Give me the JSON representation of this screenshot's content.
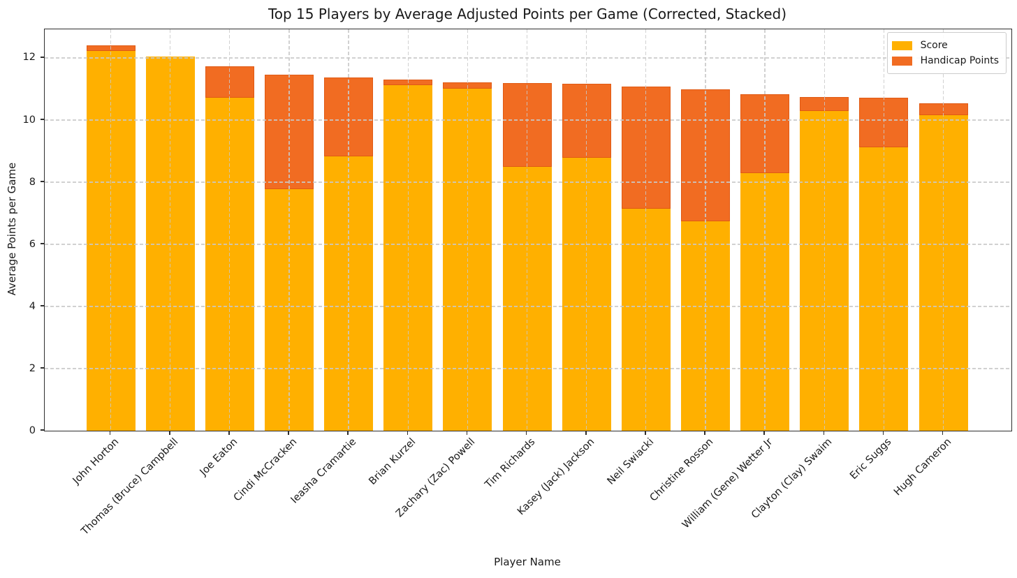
{
  "chart_data": {
    "type": "bar",
    "stacked": true,
    "title": "Top 15 Players by Average Adjusted Points per Game (Corrected, Stacked)",
    "xlabel": "Player Name",
    "ylabel": "Average Points per Game",
    "categories": [
      "John Horton",
      "Thomas (Bruce) Campbell",
      "Joe Eaton",
      "Cindi McCracken",
      "Ieasha Cramartie",
      "Brian Kurzel",
      "Zachary (Zac) Powell",
      "Tim Richards",
      "Kasey (Jack) Jackson",
      "Neil Swiacki",
      "Christine Rosson",
      "William (Gene) Wetter Jr",
      "Clayton (Clay) Swaim",
      "Eric Suggs",
      "Hugh Cameron"
    ],
    "series": [
      {
        "name": "Score",
        "color": "#FFB000",
        "edge_color": "#F2A300",
        "values": [
          12.22,
          12.05,
          10.73,
          7.78,
          8.83,
          11.12,
          11.02,
          8.5,
          8.79,
          7.14,
          6.75,
          8.3,
          10.29,
          9.13,
          10.15
        ]
      },
      {
        "name": "Handicap Points",
        "color": "#F16C22",
        "edge_color": "#E05A14",
        "values": [
          0.18,
          0.0,
          0.99,
          3.68,
          2.55,
          0.19,
          0.2,
          2.69,
          2.38,
          3.94,
          4.24,
          2.52,
          0.45,
          1.6,
          0.39
        ]
      }
    ],
    "totals": [
      12.4,
      12.05,
      11.72,
      11.46,
      11.38,
      11.31,
      11.22,
      11.19,
      11.17,
      11.08,
      10.99,
      10.82,
      10.74,
      10.73,
      10.54
    ],
    "ylim": [
      0,
      12.92
    ],
    "yticks": [
      0,
      2,
      4,
      6,
      8,
      10,
      12
    ],
    "grid": "dashed-both-axes-drawn-over-bars",
    "grid_color": "#c9c9c9",
    "spine_color": "#2e2e2e",
    "legend_position": "upper right"
  }
}
